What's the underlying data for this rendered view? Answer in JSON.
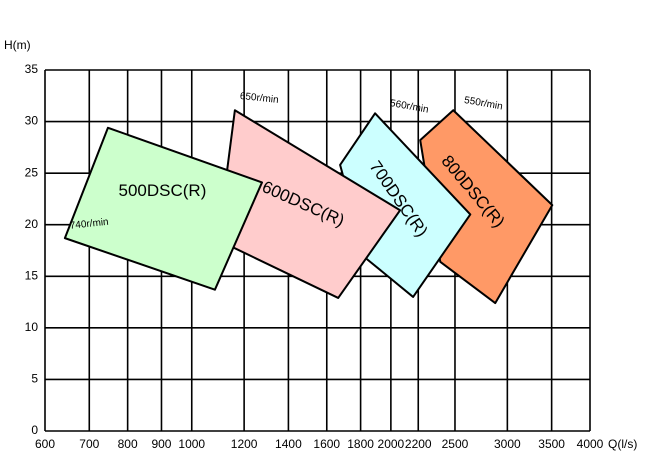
{
  "chart_data": {
    "type": "region",
    "x_label": "Q(l/s)",
    "y_label": "H(m)",
    "xscale": "log",
    "grid": true,
    "xlim": [
      600,
      4000
    ],
    "ylim": [
      0,
      35
    ],
    "xticks": [
      600,
      700,
      800,
      900,
      1000,
      1200,
      1400,
      1600,
      1800,
      2000,
      2200,
      2500,
      3000,
      3500,
      4000
    ],
    "yticks": [
      0,
      5,
      10,
      15,
      20,
      25,
      30,
      35
    ],
    "series": [
      {
        "name": "500DSC(R)",
        "speed": "740r/min",
        "color": "#ccffcc",
        "x": [
          643,
          747,
          1277,
          1084
        ],
        "values": [
          18.7,
          29.4,
          24.1,
          13.7
        ]
      },
      {
        "name": "600DSC(R)",
        "speed": "650r/min",
        "color": "#ffcccc",
        "x": [
          1162,
          2065,
          1665,
          1096
        ],
        "values": [
          31.1,
          21.4,
          12.9,
          18.5
        ]
      },
      {
        "name": "700DSC(R)",
        "speed": "560r/min",
        "color": "#ccffff",
        "x": [
          1893,
          2637,
          2161,
          1829,
          1676
        ],
        "values": [
          30.8,
          21.0,
          13.0,
          16.8,
          25.8
        ]
      },
      {
        "name": "800DSC(R)",
        "speed": "550r/min",
        "color": "#ff9966",
        "x": [
          2485,
          3508,
          2876,
          2375,
          2215
        ],
        "values": [
          31.1,
          21.9,
          12.4,
          16.4,
          28.2
        ]
      }
    ]
  }
}
